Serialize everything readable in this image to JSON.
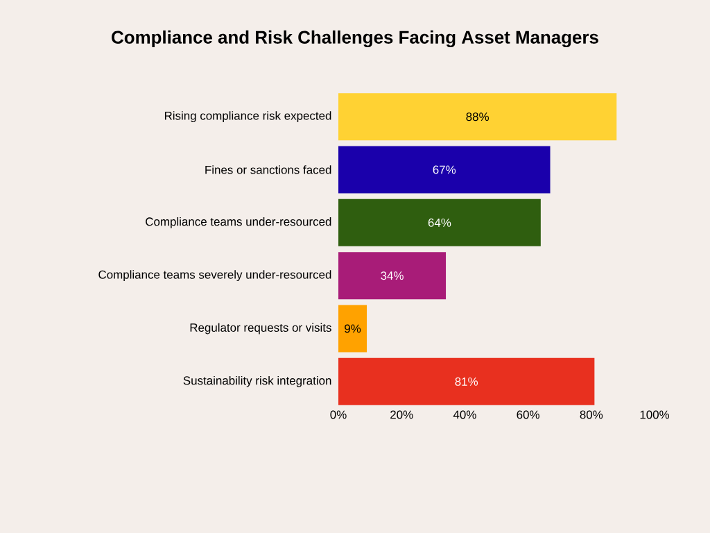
{
  "chart_data": {
    "type": "bar",
    "orientation": "horizontal",
    "title": "Compliance and Risk Challenges Facing Asset Managers",
    "categories": [
      "Rising compliance risk expected",
      "Fines or sanctions faced",
      "Compliance teams under-resourced",
      "Compliance teams severely under-resourced",
      "Regulator requests or visits",
      "Sustainability risk integration"
    ],
    "values": [
      88,
      67,
      64,
      34,
      9,
      81
    ],
    "colors": [
      "#ffd233",
      "#1a00ab",
      "#2f5e0f",
      "#a81c78",
      "#ffa200",
      "#e8301f"
    ],
    "value_labels": [
      "88%",
      "67%",
      "64%",
      "34%",
      "9%",
      "81%"
    ],
    "xlim": [
      0,
      100
    ],
    "xticks": [
      {
        "value": 0,
        "label": "0%"
      },
      {
        "value": 20,
        "label": "20%"
      },
      {
        "value": 40,
        "label": "40%"
      },
      {
        "value": 60,
        "label": "60%"
      },
      {
        "value": 80,
        "label": "80%"
      },
      {
        "value": 100,
        "label": "100%"
      }
    ],
    "grid": false
  }
}
